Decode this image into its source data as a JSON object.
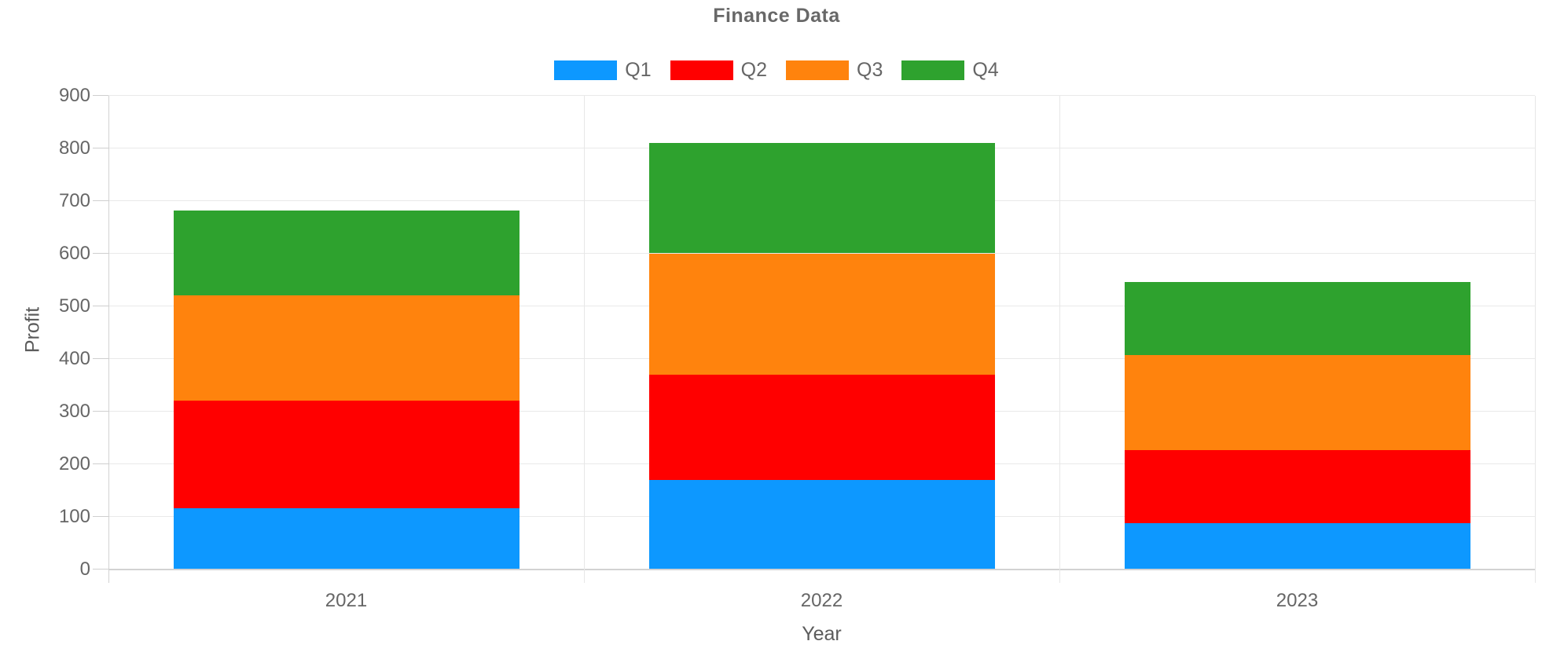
{
  "title": "Finance Data",
  "chart_data": {
    "type": "bar",
    "stacked": true,
    "title": "Finance Data",
    "xlabel": "Year",
    "ylabel": "Profit",
    "categories": [
      "2021",
      "2022",
      "2023"
    ],
    "series": [
      {
        "name": "Q1",
        "color": "#0D98FF",
        "values": [
          115,
          170,
          88
        ]
      },
      {
        "name": "Q2",
        "color": "#FF0000",
        "values": [
          205,
          199,
          138
        ]
      },
      {
        "name": "Q3",
        "color": "#FF830D",
        "values": [
          200,
          231,
          180
        ]
      },
      {
        "name": "Q4",
        "color": "#2EA22E",
        "values": [
          162,
          210,
          139
        ]
      }
    ],
    "stack_totals": [
      682,
      810,
      545
    ],
    "ylim": [
      0,
      900
    ],
    "ytick_interval": 100,
    "ytick_labels": [
      "0",
      "100",
      "200",
      "300",
      "400",
      "500",
      "600",
      "700",
      "800",
      "900"
    ],
    "grid": true,
    "legend_position": "top"
  },
  "colors": {
    "background": "#FFFFFF",
    "gridline": "#E9E9E9",
    "axis_line": "#D2D2D2",
    "tick_text": "#666666",
    "axis_title_text": "#5C5C5C",
    "title_text": "#686868"
  }
}
